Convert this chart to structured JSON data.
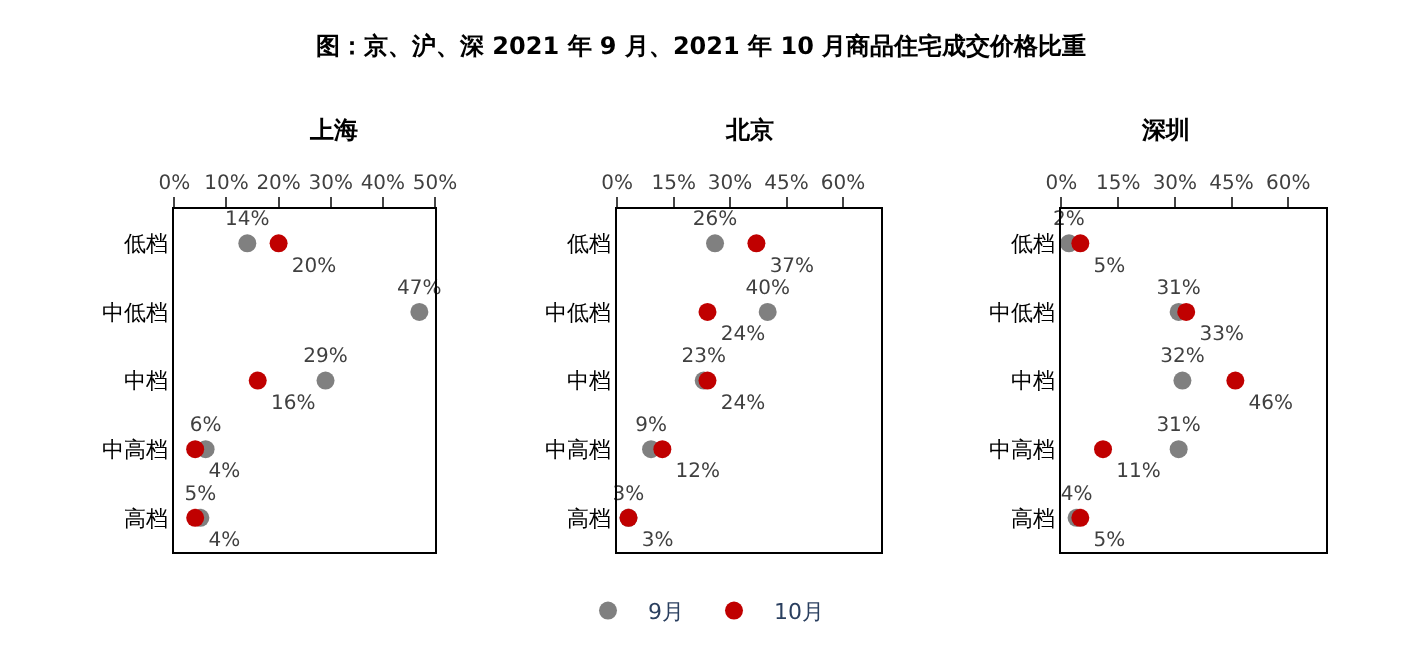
{
  "chart_data": [
    {
      "type": "scatter",
      "title": "上海",
      "annotations": [
        "图：京、沪、深 2021 年 9 月、2021 年 10 月商品住宅成交价格比重"
      ],
      "categories": [
        "低档",
        "中低档",
        "中档",
        "中高档",
        "高档"
      ],
      "orientation": "horizontal",
      "marker": "circle",
      "legend": "bottom",
      "xlim": [
        0,
        50
      ],
      "xticks": [
        {
          "value": 0,
          "label": "0%"
        },
        {
          "value": 10,
          "label": "10%"
        },
        {
          "value": 20,
          "label": "20%"
        },
        {
          "value": 30,
          "label": "30%"
        },
        {
          "value": 40,
          "label": "40%"
        },
        {
          "value": 50,
          "label": "50%"
        }
      ],
      "series": [
        {
          "name": "9月",
          "color": "#808080",
          "values": [
            14,
            47,
            29,
            6,
            5
          ],
          "value_labels": [
            "14%",
            "47%",
            "29%",
            "6%",
            "5%"
          ]
        },
        {
          "name": "10月",
          "color": "#c00000",
          "values": [
            20,
            null,
            16,
            4,
            4
          ],
          "value_labels": [
            "20%",
            null,
            "16%",
            "4%",
            "4%"
          ]
        }
      ]
    },
    {
      "type": "scatter",
      "title": "北京",
      "categories": [
        "低档",
        "中低档",
        "中档",
        "中高档",
        "高档"
      ],
      "orientation": "horizontal",
      "marker": "circle",
      "xlim": [
        0,
        70
      ],
      "xticks": [
        {
          "value": 0,
          "label": "0%"
        },
        {
          "value": 15,
          "label": "15%"
        },
        {
          "value": 30,
          "label": "30%"
        },
        {
          "value": 45,
          "label": "45%"
        },
        {
          "value": 60,
          "label": "60%"
        }
      ],
      "series": [
        {
          "color": "#808080",
          "values": [
            26,
            40,
            23,
            9,
            3
          ],
          "value_labels": [
            "26%",
            "40%",
            "23%",
            "9%",
            "3%"
          ]
        },
        {
          "color": "#c00000",
          "values": [
            37,
            24,
            24,
            12,
            3
          ],
          "value_labels": [
            "37%",
            "24%",
            "24%",
            "12%",
            "3%"
          ]
        }
      ]
    },
    {
      "type": "scatter",
      "title": "深圳",
      "categories": [
        "低档",
        "中低档",
        "中档",
        "中高档",
        "高档"
      ],
      "orientation": "horizontal",
      "marker": "circle",
      "xlim": [
        0,
        70
      ],
      "xticks": [
        {
          "value": 0,
          "label": "0%"
        },
        {
          "value": 15,
          "label": "15%"
        },
        {
          "value": 30,
          "label": "30%"
        },
        {
          "value": 45,
          "label": "45%"
        },
        {
          "value": 60,
          "label": "60%"
        }
      ],
      "series": [
        {
          "color": "#808080",
          "values": [
            2,
            31,
            32,
            31,
            4
          ],
          "value_labels": [
            "2%",
            "31%",
            "32%",
            "31%",
            "4%"
          ]
        },
        {
          "color": "#c00000",
          "values": [
            5,
            33,
            46,
            11,
            5
          ],
          "value_labels": [
            "5%",
            "33%",
            "46%",
            "11%",
            "5%"
          ]
        }
      ]
    }
  ]
}
